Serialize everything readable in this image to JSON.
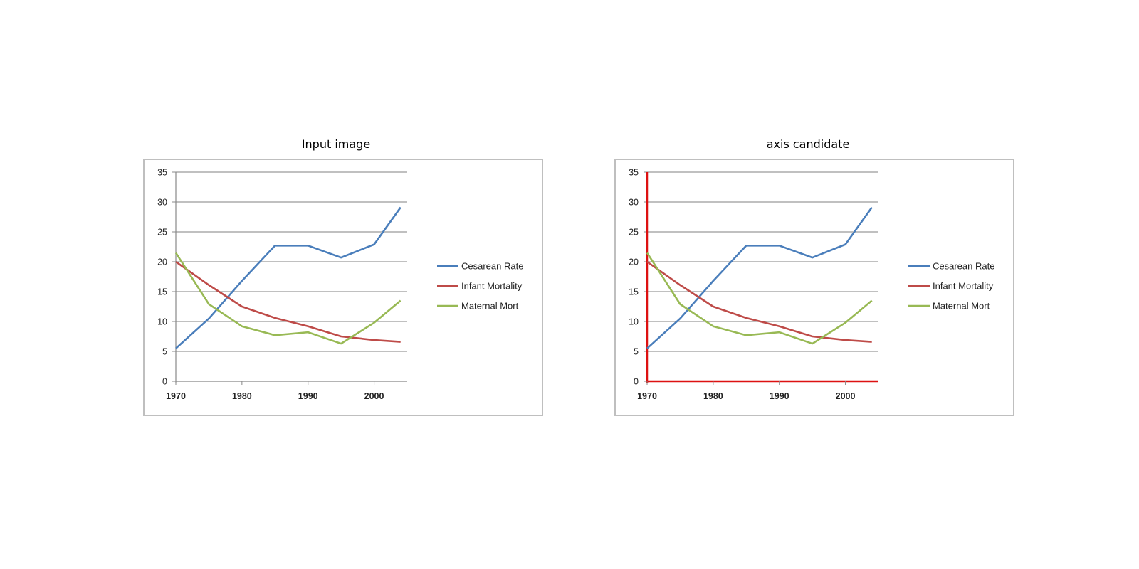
{
  "panels": [
    {
      "title": "Input image",
      "highlight_axes": false
    },
    {
      "title": "axis candidate",
      "highlight_axes": true,
      "axis_color": "#dd1111"
    }
  ],
  "chart_data": {
    "type": "line",
    "x": [
      1970,
      1975,
      1980,
      1985,
      1990,
      1995,
      2000,
      2004
    ],
    "x_ticks": [
      1970,
      1980,
      1990,
      2000
    ],
    "y_ticks": [
      0,
      5,
      10,
      15,
      20,
      25,
      30,
      35
    ],
    "xlim": [
      1970,
      2005
    ],
    "ylim": [
      0,
      35
    ],
    "grid": "horizontal",
    "legend_position": "right",
    "series": [
      {
        "name": "Cesarean Rate",
        "color": "#4a7ebb",
        "values": [
          5.5,
          10.5,
          16.8,
          22.7,
          22.7,
          20.7,
          22.9,
          29.1
        ]
      },
      {
        "name": "Infant Mortality",
        "color": "#be4b48",
        "values": [
          20.0,
          16.1,
          12.5,
          10.6,
          9.2,
          7.5,
          6.9,
          6.6
        ]
      },
      {
        "name": "Maternal Mort",
        "color": "#98b954",
        "values": [
          21.5,
          12.9,
          9.2,
          7.7,
          8.2,
          6.3,
          9.8,
          13.5
        ]
      }
    ]
  }
}
